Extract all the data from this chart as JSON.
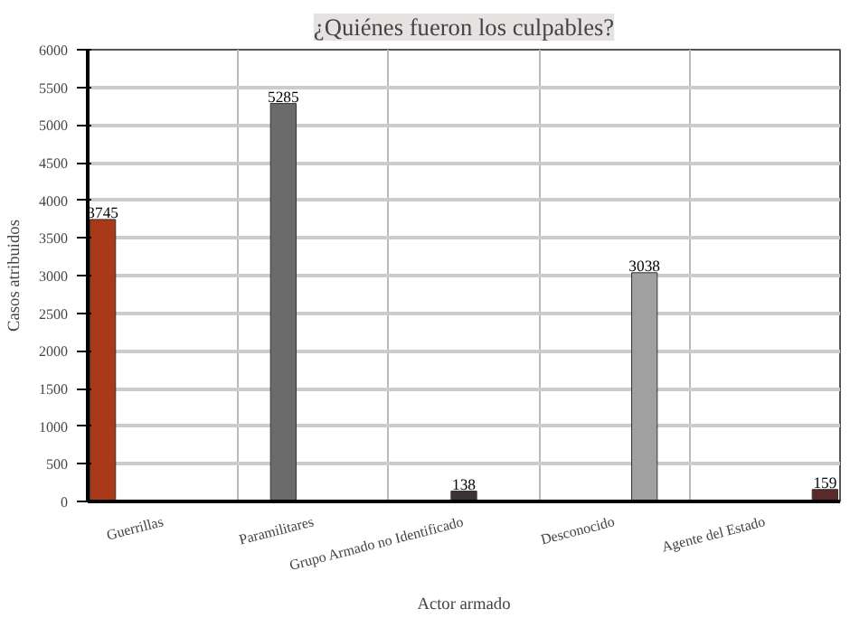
{
  "chart_data": {
    "type": "bar",
    "title": "¿Quiénes fueron los culpables?",
    "xlabel": "Actor armado",
    "ylabel": "Casos atribuidos",
    "categories": [
      "Guerrillas",
      "Paramilitares",
      "Grupo Armado no Identificado",
      "Desconocido",
      "Agente del Estado"
    ],
    "series": [
      {
        "color": "#a83a1a",
        "values": [
          3745,
          null,
          null,
          null,
          null
        ]
      },
      {
        "color": "#6b6b6b",
        "values": [
          null,
          5285,
          null,
          null,
          null
        ]
      },
      {
        "color": "#3a3434",
        "values": [
          null,
          null,
          138,
          null,
          null
        ]
      },
      {
        "color": "#a0a0a0",
        "values": [
          null,
          null,
          null,
          3038,
          null
        ]
      },
      {
        "color": "#5a2a2a",
        "values": [
          null,
          null,
          null,
          null,
          159
        ]
      }
    ],
    "ylim": [
      0,
      6000
    ],
    "yticks": [
      0,
      500,
      1000,
      1500,
      2000,
      2500,
      3000,
      3500,
      4000,
      4500,
      5000,
      5500,
      6000
    ],
    "grid": true,
    "data_labels": true
  }
}
